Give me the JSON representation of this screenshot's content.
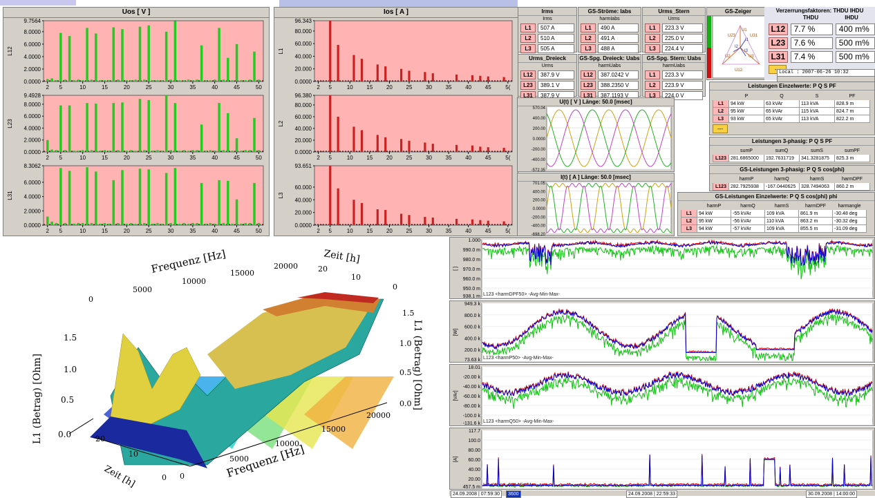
{
  "colors": {
    "harm_green": "#22cc22",
    "harm_red": "#cc1f1f",
    "panel_bg": "#ffb3b3",
    "trend_blue": "#0000d8",
    "trend_green": "#10c010",
    "trend_red": "#e00000"
  },
  "uos": {
    "title": "Uos [ V ]",
    "xticks": [
      "2",
      "5",
      "10",
      "15",
      "20",
      "25",
      "30",
      "35",
      "40",
      "45",
      "50"
    ],
    "charts": [
      {
        "label": "L12",
        "max": "9.7564",
        "ticks": [
          "8.0000",
          "6.0000",
          "4.0000",
          "2.0000",
          "0.0000"
        ]
      },
      {
        "label": "L23",
        "max": "9.4928",
        "ticks": [
          "8.0000",
          "6.0000",
          "4.0000",
          "2.0000",
          "0.0000"
        ]
      },
      {
        "label": "L31",
        "max": "8.3062",
        "ticks": [
          "6.0000",
          "4.0000",
          "2.0000",
          "0.0000"
        ]
      }
    ]
  },
  "ios": {
    "title": "Ios [ A ]",
    "xticks": [
      "2",
      "5",
      "10",
      "15",
      "20",
      "25",
      "30",
      "35",
      "40",
      "45",
      "5("
    ],
    "charts": [
      {
        "label": "L1",
        "max": "96.343",
        "ticks": [
          "80.000",
          "60.000",
          "40.000",
          "20.000",
          "0.0000"
        ]
      },
      {
        "label": "L2",
        "max": "96.380",
        "ticks": [
          "80.000",
          "60.000",
          "40.000",
          "20.000",
          "0.0000"
        ]
      },
      {
        "label": "L3",
        "max": "93.651",
        "ticks": [
          "60.000",
          "40.000",
          "20.000",
          "0.0000"
        ]
      }
    ]
  },
  "chart_data": [
    {
      "type": "bar",
      "title": "Uos [ V ]",
      "ylabel": "L12",
      "ylim": [
        0,
        9.7564
      ],
      "x": [
        2,
        3,
        4,
        5,
        6,
        7,
        8,
        9,
        10,
        11,
        12,
        13,
        14,
        15,
        16,
        17,
        18,
        19,
        20,
        21,
        22,
        23,
        24,
        25,
        26,
        27,
        28,
        29,
        30,
        31,
        32,
        33,
        34,
        35,
        36,
        37,
        38,
        39,
        40,
        41,
        42,
        43,
        44,
        45,
        46,
        47,
        48,
        49,
        50
      ],
      "values": [
        0.4,
        0.5,
        0.2,
        7.8,
        0.3,
        7.3,
        0.2,
        0.3,
        0.2,
        8.6,
        0.3,
        7.7,
        0.2,
        0.2,
        0.2,
        8.7,
        0.3,
        8.4,
        0.2,
        0.2,
        0.3,
        8.8,
        0.3,
        9.0,
        0.2,
        0.2,
        0.2,
        8.0,
        0.3,
        9.7,
        0.2,
        0.2,
        0.3,
        0.2,
        0.3,
        5.8,
        0.2,
        0.2,
        0.3,
        8.6,
        0.3,
        3.8,
        0.2,
        6.0,
        0.2,
        0.2,
        0.3,
        4.8,
        0.3
      ]
    },
    {
      "type": "bar",
      "title": "Uos [ V ]",
      "ylabel": "L23",
      "ylim": [
        0,
        9.4928
      ],
      "x": [
        2,
        3,
        4,
        5,
        6,
        7,
        8,
        9,
        10,
        11,
        12,
        13,
        14,
        15,
        16,
        17,
        18,
        19,
        20,
        21,
        22,
        23,
        24,
        25,
        26,
        27,
        28,
        29,
        30,
        31,
        32,
        33,
        34,
        35,
        36,
        37,
        38,
        39,
        40,
        41,
        42,
        43,
        44,
        45,
        46,
        47,
        48,
        49,
        50
      ],
      "values": [
        2.0,
        0.4,
        0.3,
        7.8,
        0.3,
        7.8,
        0.2,
        0.2,
        0.3,
        8.2,
        0.3,
        8.1,
        0.2,
        0.3,
        0.2,
        8.2,
        0.3,
        8.3,
        0.2,
        0.3,
        0.2,
        8.9,
        0.3,
        8.7,
        0.2,
        0.3,
        0.2,
        9.5,
        0.3,
        8.2,
        0.2,
        0.3,
        0.2,
        0.3,
        0.3,
        4.6,
        0.2,
        0.3,
        0.2,
        8.2,
        0.3,
        6.5,
        0.2,
        2.3,
        0.2,
        0.3,
        0.3,
        5.7,
        0.3
      ]
    },
    {
      "type": "bar",
      "title": "Uos [ V ]",
      "ylabel": "L31",
      "ylim": [
        0,
        8.3062
      ],
      "x": [
        2,
        3,
        4,
        5,
        6,
        7,
        8,
        9,
        10,
        11,
        12,
        13,
        14,
        15,
        16,
        17,
        18,
        19,
        20,
        21,
        22,
        23,
        24,
        25,
        26,
        27,
        28,
        29,
        30,
        31,
        32,
        33,
        34,
        35,
        36,
        37,
        38,
        39,
        40,
        41,
        42,
        43,
        44,
        45,
        46,
        47,
        48,
        49,
        50
      ],
      "values": [
        1.2,
        0.5,
        0.3,
        8.0,
        0.3,
        7.6,
        0.2,
        0.3,
        0.3,
        8.1,
        0.3,
        7.5,
        0.2,
        0.3,
        0.2,
        6.3,
        0.3,
        7.7,
        0.2,
        0.3,
        0.2,
        7.9,
        0.3,
        7.8,
        0.2,
        0.3,
        0.2,
        7.3,
        0.3,
        8.0,
        0.2,
        0.3,
        0.2,
        0.3,
        0.3,
        5.9,
        0.2,
        0.3,
        0.2,
        6.3,
        0.3,
        6.2,
        0.2,
        3.6,
        0.2,
        0.3,
        0.3,
        5.9,
        0.3
      ]
    },
    {
      "type": "bar",
      "title": "Ios [ A ]",
      "ylabel": "L1",
      "ylim": [
        0,
        96.343
      ],
      "x": [
        2,
        3,
        4,
        5,
        6,
        7,
        8,
        9,
        10,
        11,
        12,
        13,
        14,
        15,
        16,
        17,
        18,
        19,
        20,
        21,
        22,
        23,
        24,
        25,
        26,
        27,
        28,
        29,
        30,
        31,
        32,
        33,
        34,
        35,
        36,
        37,
        38,
        39,
        40,
        41,
        42,
        43,
        44,
        45,
        46,
        47,
        48,
        49,
        50
      ],
      "values": [
        0.8,
        1.2,
        0.8,
        96.3,
        1.0,
        58,
        0.7,
        0.8,
        0.6,
        42,
        0.7,
        36,
        0.6,
        0.6,
        0.5,
        27,
        0.6,
        24,
        0.5,
        0.5,
        0.5,
        20,
        0.5,
        17,
        0.4,
        0.4,
        0.4,
        15,
        0.4,
        13,
        0.4,
        0.4,
        0.4,
        0.4,
        0.4,
        11,
        0.3,
        0.4,
        0.3,
        10,
        0.3,
        9,
        0.3,
        8,
        0.3,
        0.3,
        0.3,
        7,
        0.3
      ]
    },
    {
      "type": "bar",
      "title": "Ios [ A ]",
      "ylabel": "L2",
      "ylim": [
        0,
        96.38
      ],
      "x": [
        2,
        3,
        4,
        5,
        6,
        7,
        8,
        9,
        10,
        11,
        12,
        13,
        14,
        15,
        16,
        17,
        18,
        19,
        20,
        21,
        22,
        23,
        24,
        25,
        26,
        27,
        28,
        29,
        30,
        31,
        32,
        33,
        34,
        35,
        36,
        37,
        38,
        39,
        40,
        41,
        42,
        43,
        44,
        45,
        46,
        47,
        48,
        49,
        50
      ],
      "values": [
        0.8,
        1.3,
        0.8,
        96.4,
        1.0,
        60,
        0.7,
        0.8,
        0.6,
        43,
        0.7,
        37,
        0.6,
        0.6,
        0.5,
        29,
        0.6,
        25,
        0.5,
        0.5,
        0.5,
        22,
        0.5,
        19,
        0.4,
        0.4,
        0.4,
        16,
        0.4,
        14,
        0.4,
        0.4,
        0.4,
        0.4,
        0.4,
        12,
        0.3,
        0.4,
        0.3,
        11,
        0.3,
        9,
        0.3,
        8,
        0.3,
        0.3,
        0.3,
        7,
        0.3
      ]
    },
    {
      "type": "bar",
      "title": "Ios [ A ]",
      "ylabel": "L3",
      "ylim": [
        0,
        93.651
      ],
      "x": [
        2,
        3,
        4,
        5,
        6,
        7,
        8,
        9,
        10,
        11,
        12,
        13,
        14,
        15,
        16,
        17,
        18,
        19,
        20,
        21,
        22,
        23,
        24,
        25,
        26,
        27,
        28,
        29,
        30,
        31,
        32,
        33,
        34,
        35,
        36,
        37,
        38,
        39,
        40,
        41,
        42,
        43,
        44,
        45,
        46,
        47,
        48,
        49,
        50
      ],
      "values": [
        0.8,
        1.2,
        0.8,
        93.6,
        1.0,
        58,
        0.7,
        0.8,
        0.6,
        40,
        0.7,
        35,
        0.6,
        0.6,
        0.5,
        25,
        0.6,
        24,
        0.5,
        0.5,
        0.5,
        18,
        0.5,
        16,
        0.4,
        0.4,
        0.4,
        13,
        0.4,
        12,
        0.4,
        0.4,
        0.4,
        0.4,
        0.4,
        10,
        0.3,
        0.4,
        0.3,
        9,
        0.3,
        8,
        0.3,
        7,
        0.3,
        0.3,
        0.3,
        6,
        0.3
      ]
    }
  ],
  "irms": {
    "title": "Irms",
    "sub": "Irms",
    "rows": [
      {
        "tag": "L1",
        "val": "507 A"
      },
      {
        "tag": "L2",
        "val": "510 A"
      },
      {
        "tag": "L3",
        "val": "505 A"
      }
    ]
  },
  "gs_strome": {
    "title": "GS-Ströme: Iabs",
    "sub": "harmIabs",
    "rows": [
      {
        "tag": "L1",
        "val": "490 A"
      },
      {
        "tag": "L2",
        "val": "491 A"
      },
      {
        "tag": "L3",
        "val": "488 A"
      }
    ]
  },
  "urms_stern": {
    "title": "Urms_Stern",
    "sub": "Urms",
    "rows": [
      {
        "tag": "L1",
        "val": "223.3 V"
      },
      {
        "tag": "L2",
        "val": "225.0 V"
      },
      {
        "tag": "L3",
        "val": "224.4 V"
      }
    ]
  },
  "urms_dreieck": {
    "title": "Urms_Dreieck",
    "sub": "Urms",
    "rows": [
      {
        "tag": "L12",
        "val": "387.9 V"
      },
      {
        "tag": "L23",
        "val": "389.1 V"
      },
      {
        "tag": "L31",
        "val": "387.9 V"
      }
    ]
  },
  "gs_dreieck": {
    "title": "GS-Spg. Dreieck: Uabs",
    "sub": "harmUabs",
    "rows": [
      {
        "tag": "L12",
        "val": "387.0242 V"
      },
      {
        "tag": "L23",
        "val": "388.2350 V"
      },
      {
        "tag": "L31",
        "val": "387.1193 V"
      }
    ]
  },
  "gs_stern": {
    "title": "GS-Spg. Stern: Uabs",
    "sub": "harmUabs",
    "rows": [
      {
        "tag": "L1",
        "val": "223.3 V"
      },
      {
        "tag": "L2",
        "val": "223.9 V"
      },
      {
        "tag": "L3",
        "val": "224.0 V"
      }
    ]
  },
  "gs_zeiger": {
    "title": "GS-Zeiger",
    "labels": [
      "U23",
      "U1",
      "U2",
      "I2",
      "U3",
      "I3",
      "I1",
      "U31",
      "U12"
    ]
  },
  "thd": {
    "title": "Verzerrungsfaktoren: THDU IHDU",
    "h_thdu": "THDU",
    "h_ihdu": "IHDU",
    "rows": [
      {
        "tag": "L12",
        "thdu": "7.7 %",
        "ihdu": "400 m%"
      },
      {
        "tag": "L23",
        "thdu": "7.6 %",
        "ihdu": "500 m%"
      },
      {
        "tag": "L31",
        "thdu": "7.4 %",
        "ihdu": "500 m%"
      }
    ],
    "yellow": "---",
    "clock": "Local : 2007-06-26 10:32"
  },
  "leist_einzel": {
    "title": "Leistungen Einzelwerte: P Q S PF",
    "cols": [
      "P",
      "Q",
      "S",
      "PF"
    ],
    "rows": [
      {
        "tag": "L1",
        "c": [
          "94 kW",
          "63 kVAr",
          "113 kVA",
          "828.9 m"
        ]
      },
      {
        "tag": "L2",
        "c": [
          "95 kW",
          "65 kVAr",
          "115 kVA",
          "824.7 m"
        ]
      },
      {
        "tag": "L3",
        "c": [
          "93 kW",
          "65 kVAr",
          "113 kVA",
          "822.2 m"
        ]
      }
    ],
    "yellow": "---"
  },
  "leist_3ph": {
    "title": "Leistungen 3-phasig: P Q S PF",
    "cols": [
      "sumP",
      "sumQ",
      "sumS",
      "sumPF"
    ],
    "row": {
      "tag": "L123",
      "c": [
        "281.6865000",
        "192.7631719",
        "341.3281875",
        "825.3 m"
      ]
    }
  },
  "gs_3ph": {
    "title": "GS-Leistungen 3-phasig: P Q S cos(phi)",
    "cols": [
      "harmP",
      "harmQ",
      "harmS",
      "harmDPF"
    ],
    "row": {
      "tag": "L123",
      "c": [
        "282.7925938",
        "-167.0440625",
        "328.7494063",
        "860.2 m"
      ]
    }
  },
  "gs_einzel": {
    "title": "GS-Leistungen Einzelwerte: P Q S cos(phi) phi",
    "cols": [
      "harmP",
      "harmQ",
      "harmS",
      "harmDPF",
      "harmangle"
    ],
    "rows": [
      {
        "tag": "L1",
        "c": [
          "94 kW",
          "-55 kVAr",
          "109 kVA",
          "861.9 m",
          "-30.48 deg"
        ]
      },
      {
        "tag": "L2",
        "c": [
          "95 kW",
          "-56 kVAr",
          "110 kVA",
          "863.2 m",
          "-30.32 deg"
        ]
      },
      {
        "tag": "L3",
        "c": [
          "94 kW",
          "-57 kVAr",
          "109 kVA",
          "855.5 m",
          "-31.09 deg"
        ]
      }
    ]
  },
  "scope_u": {
    "title": "U(t) [ V ]   Länge: 50.0 [msec]",
    "ticks": [
      "570.04",
      "400.00",
      "200.00",
      "0.0000",
      "-200.00",
      "-400.00",
      "-572.35"
    ]
  },
  "scope_i": {
    "title": "I(t) [ A ]   Länge: 50.0 [msec]",
    "ticks": [
      "701.05",
      "400.00",
      "200.00",
      "0.0000",
      "-200.00",
      "-400.00",
      "-698.20"
    ]
  },
  "plot3d": {
    "top_x_label": "Frequenz [Hz]",
    "top_x_ticks": [
      "0",
      "5000",
      "10000",
      "15000",
      "20000"
    ],
    "top_t_label": "Zeit [h]",
    "top_t_ticks": [
      "20",
      "10",
      "0"
    ],
    "left_y_label": "L1 (Betrag) [Ohm]",
    "left_y_ticks": [
      "1.5",
      "1.0",
      "0.5",
      "0.0"
    ],
    "right_y_label": "L1 (Betrag) [Ohm]",
    "right_y_ticks": [
      "1.5",
      "1.0",
      "0.5",
      "0.0"
    ],
    "bottom_x_label": "Frequenz [Hz]",
    "bottom_x_ticks": [
      "0",
      "5000",
      "10000",
      "15000",
      "20000"
    ],
    "bottom_t_label": "Zeit [h]",
    "bottom_t_ticks": [
      "20",
      "10",
      "0"
    ]
  },
  "trends": [
    {
      "name": "L123  <harmDPF50>  -Avg-Min-Max-",
      "unit": "[ ]",
      "ticks": [
        "1.000",
        "990.0 m",
        "980.0 m",
        "970.0 m",
        "960.0 m",
        "950.0 m",
        "938.1 m"
      ]
    },
    {
      "name": "L123  <harmP50>  -Avg-Min-Max-",
      "unit": "[W]",
      "ticks": [
        "949.3 k",
        "800.0 k",
        "600.0 k",
        "400.0 k",
        "200.0 k",
        "73.63 k"
      ]
    },
    {
      "name": "L123  <harmQ50>  -Avg-Min-Max-",
      "unit": "[VAr]",
      "ticks": [
        "18.01",
        "-20.00 k",
        "-40.00 k",
        "-60.00 k",
        "-80.00 k",
        "-100.0 k",
        "-131.6 k"
      ]
    },
    {
      "name": "L1  <Irms>  -Avg-Min-Max-",
      "unit": "[A]",
      "ticks": [
        "117.7",
        "100.0",
        "80.00",
        "60.00",
        "40.00",
        "20.00",
        "457.5 m"
      ]
    }
  ],
  "timeline": {
    "t1": "24.09.2008 | 07:59:30",
    "sel": "3600",
    "t2": "24.09.2008 | 22:59:33",
    "t3": "30.09.2008 | 14:00:00"
  }
}
